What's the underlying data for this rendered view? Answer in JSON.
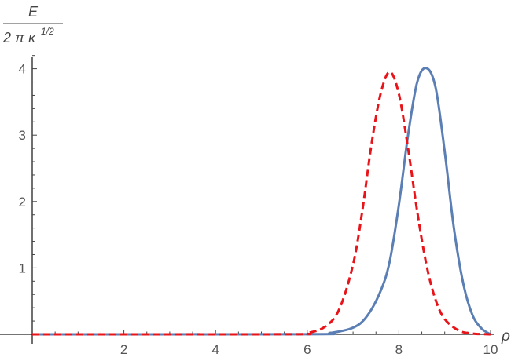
{
  "chart_data": {
    "type": "line",
    "xlabel": "ρ",
    "ylabel": {
      "numerator": "E",
      "denominator": "2 π κ",
      "superscript": "1/2"
    },
    "xlim": [
      0,
      10
    ],
    "ylim": [
      0,
      4.2
    ],
    "x_ticks": [
      2,
      4,
      6,
      8,
      10
    ],
    "y_ticks": [
      1,
      2,
      3,
      4
    ],
    "grid": false,
    "legend": "none",
    "series": [
      {
        "style": "solid",
        "color": "#5b7fb5",
        "x": [
          0,
          6.0,
          6.5,
          7.0,
          7.3,
          7.6,
          7.8,
          8.0,
          8.2,
          8.4,
          8.6,
          8.8,
          9.0,
          9.2,
          9.4,
          9.6,
          9.8,
          10.0
        ],
        "y": [
          0,
          0.002,
          0.02,
          0.1,
          0.27,
          0.65,
          1.1,
          1.95,
          3.0,
          3.8,
          4.01,
          3.72,
          2.75,
          1.6,
          0.78,
          0.3,
          0.09,
          0.0
        ]
      },
      {
        "style": "dashed",
        "color": "#e8141a",
        "x": [
          0,
          5.5,
          6.0,
          6.4,
          6.7,
          7.0,
          7.2,
          7.4,
          7.6,
          7.8,
          8.0,
          8.2,
          8.4,
          8.6,
          8.8,
          9.0,
          9.3,
          9.6,
          10.0
        ],
        "y": [
          0,
          0.001,
          0.02,
          0.12,
          0.38,
          1.05,
          1.85,
          2.85,
          3.62,
          3.95,
          3.62,
          2.8,
          1.85,
          1.05,
          0.52,
          0.23,
          0.06,
          0.012,
          0.0
        ]
      }
    ]
  }
}
